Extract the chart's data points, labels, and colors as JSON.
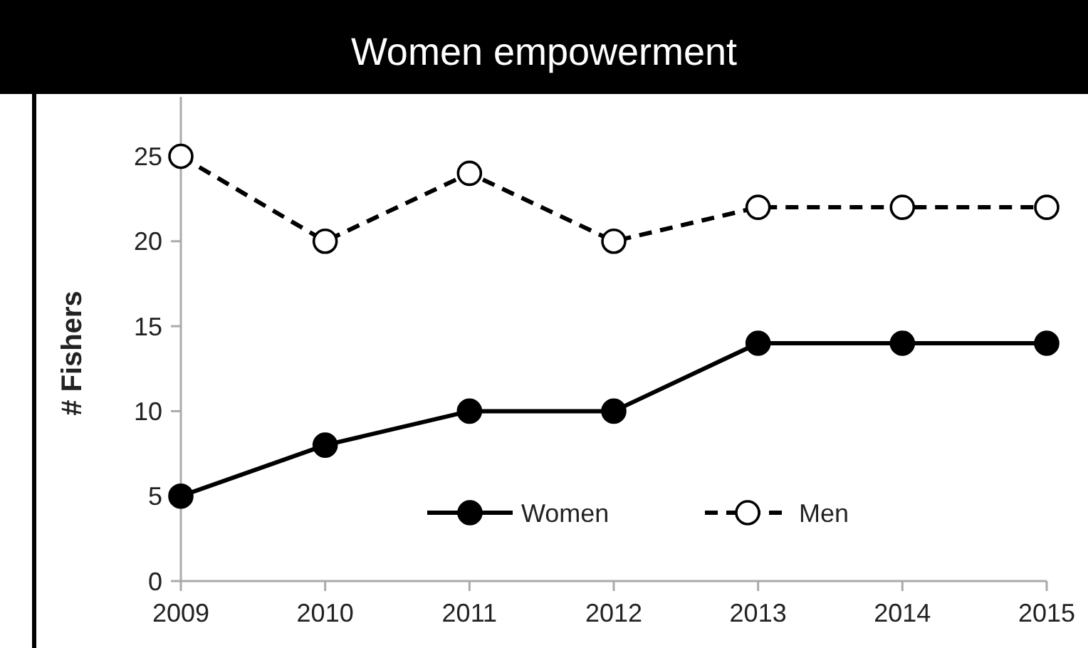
{
  "chart_data": {
    "type": "line",
    "title": "Women empowerment",
    "ylabel": "# Fishers",
    "x": [
      2009,
      2010,
      2011,
      2012,
      2013,
      2014,
      2015
    ],
    "xlim": [
      2009,
      2015
    ],
    "xticks": [
      2009,
      2010,
      2011,
      2012,
      2013,
      2014,
      2015
    ],
    "ylim": [
      0,
      28.5
    ],
    "yticks": [
      0,
      5,
      10,
      15,
      20,
      25
    ],
    "grid": false,
    "legend": "bottom",
    "marker": "circle",
    "series": [
      {
        "name": "Women",
        "color": "#000000",
        "line_style": "solid",
        "values": [
          5,
          8,
          10,
          10,
          14,
          14,
          14
        ]
      },
      {
        "name": "Men",
        "color": "#000000",
        "line_style": "dashed",
        "values": [
          25,
          20,
          24,
          20,
          22,
          22,
          22
        ]
      }
    ]
  }
}
